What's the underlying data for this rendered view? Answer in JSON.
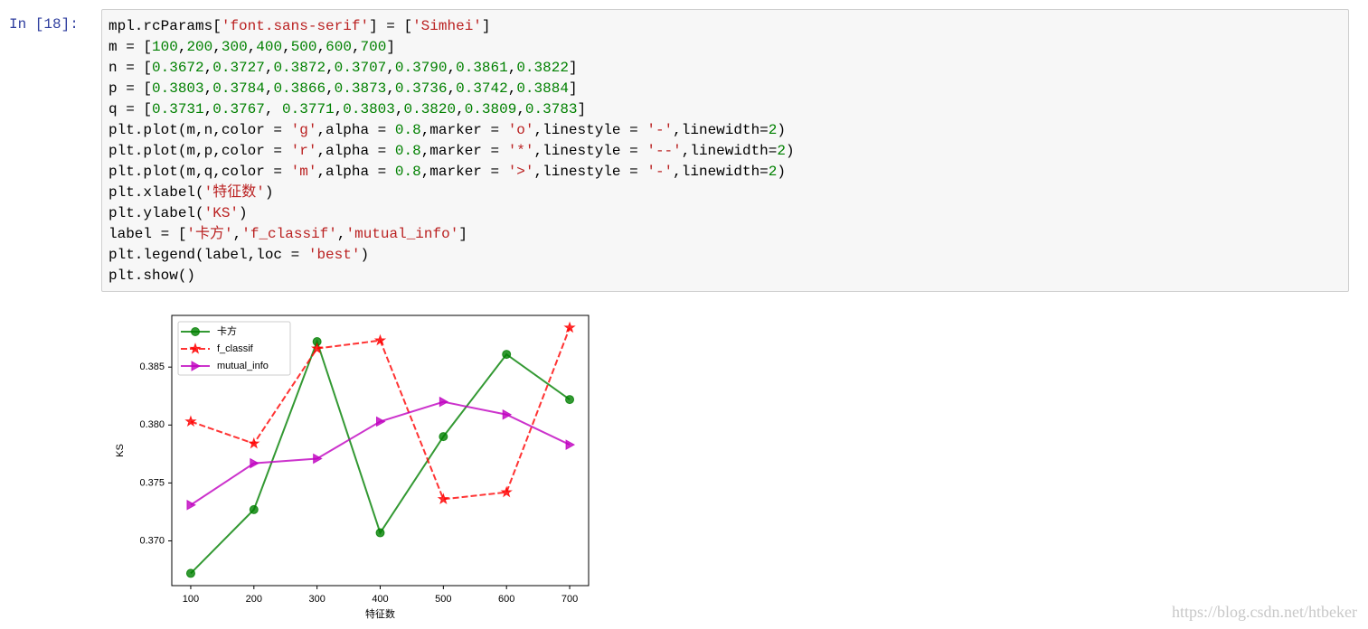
{
  "prompt": "In [18]:",
  "code": [
    "mpl.rcParams['font.sans-serif'] = ['Simhei']",
    "m = [100,200,300,400,500,600,700]",
    "n = [0.3672,0.3727,0.3872,0.3707,0.3790,0.3861,0.3822]",
    "p = [0.3803,0.3784,0.3866,0.3873,0.3736,0.3742,0.3884]",
    "q = [0.3731,0.3767, 0.3771,0.3803,0.3820,0.3809,0.3783]",
    "plt.plot(m,n,color = 'g',alpha = 0.8,marker = 'o',linestyle = '-',linewidth=2)",
    "plt.plot(m,p,color = 'r',alpha = 0.8,marker = '*',linestyle = '--',linewidth=2)",
    "plt.plot(m,q,color = 'm',alpha = 0.8,marker = '>',linestyle = '-',linewidth=2)",
    "plt.xlabel('特征数')",
    "plt.ylabel('KS')",
    "label = ['卡方','f_classif','mutual_info']",
    "plt.legend(label,loc = 'best')",
    "plt.show()"
  ],
  "chart_data": {
    "type": "line",
    "xlabel": "特征数",
    "ylabel": "KS",
    "x": [
      100,
      200,
      300,
      400,
      500,
      600,
      700
    ],
    "xlim": [
      70,
      730
    ],
    "xticks": [
      100,
      200,
      300,
      400,
      500,
      600,
      700
    ],
    "ylim": [
      0.36614,
      0.38946
    ],
    "yticks": [
      {
        "value": 0.37,
        "label": "0.370"
      },
      {
        "value": 0.375,
        "label": "0.375"
      },
      {
        "value": 0.38,
        "label": "0.380"
      },
      {
        "value": 0.385,
        "label": "0.385"
      }
    ],
    "alpha": 0.8,
    "legend": "upper left",
    "series": [
      {
        "name": "卡方",
        "color": "#008000",
        "marker": "o",
        "linestyle": "solid",
        "values": [
          0.3672,
          0.3727,
          0.3872,
          0.3707,
          0.379,
          0.3861,
          0.3822
        ]
      },
      {
        "name": "f_classif",
        "color": "#ff0000",
        "marker": "*",
        "linestyle": "dashed",
        "values": [
          0.3803,
          0.3784,
          0.3866,
          0.3873,
          0.3736,
          0.3742,
          0.3884
        ]
      },
      {
        "name": "mutual_info",
        "color": "#bf00bf",
        "marker": ">",
        "linestyle": "solid",
        "values": [
          0.3731,
          0.3767,
          0.3771,
          0.3803,
          0.382,
          0.3809,
          0.3783
        ]
      }
    ]
  },
  "watermark": "https://blog.csdn.net/htbeker"
}
